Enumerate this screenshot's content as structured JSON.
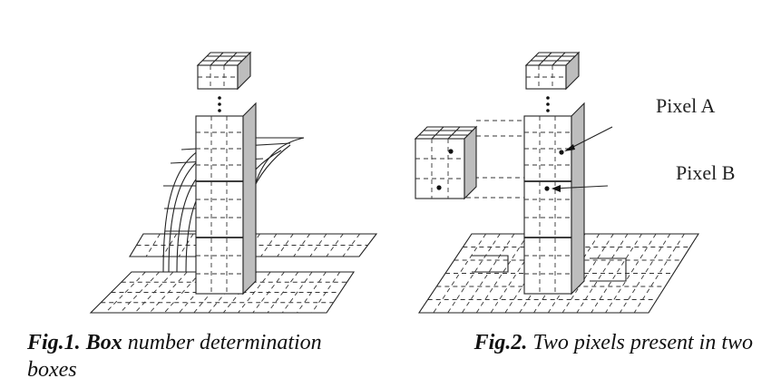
{
  "labels": {
    "pixel_a": "Pixel A",
    "pixel_b": "Pixel B"
  },
  "captions": {
    "fig1_prefix": "Fig.1.",
    "fig1_bold": "Box",
    "fig1_rest": " number determination",
    "fig2_prefix": "Fig.2.",
    "fig2_rest": " Two pixels present in two",
    "wrap": "boxes"
  }
}
